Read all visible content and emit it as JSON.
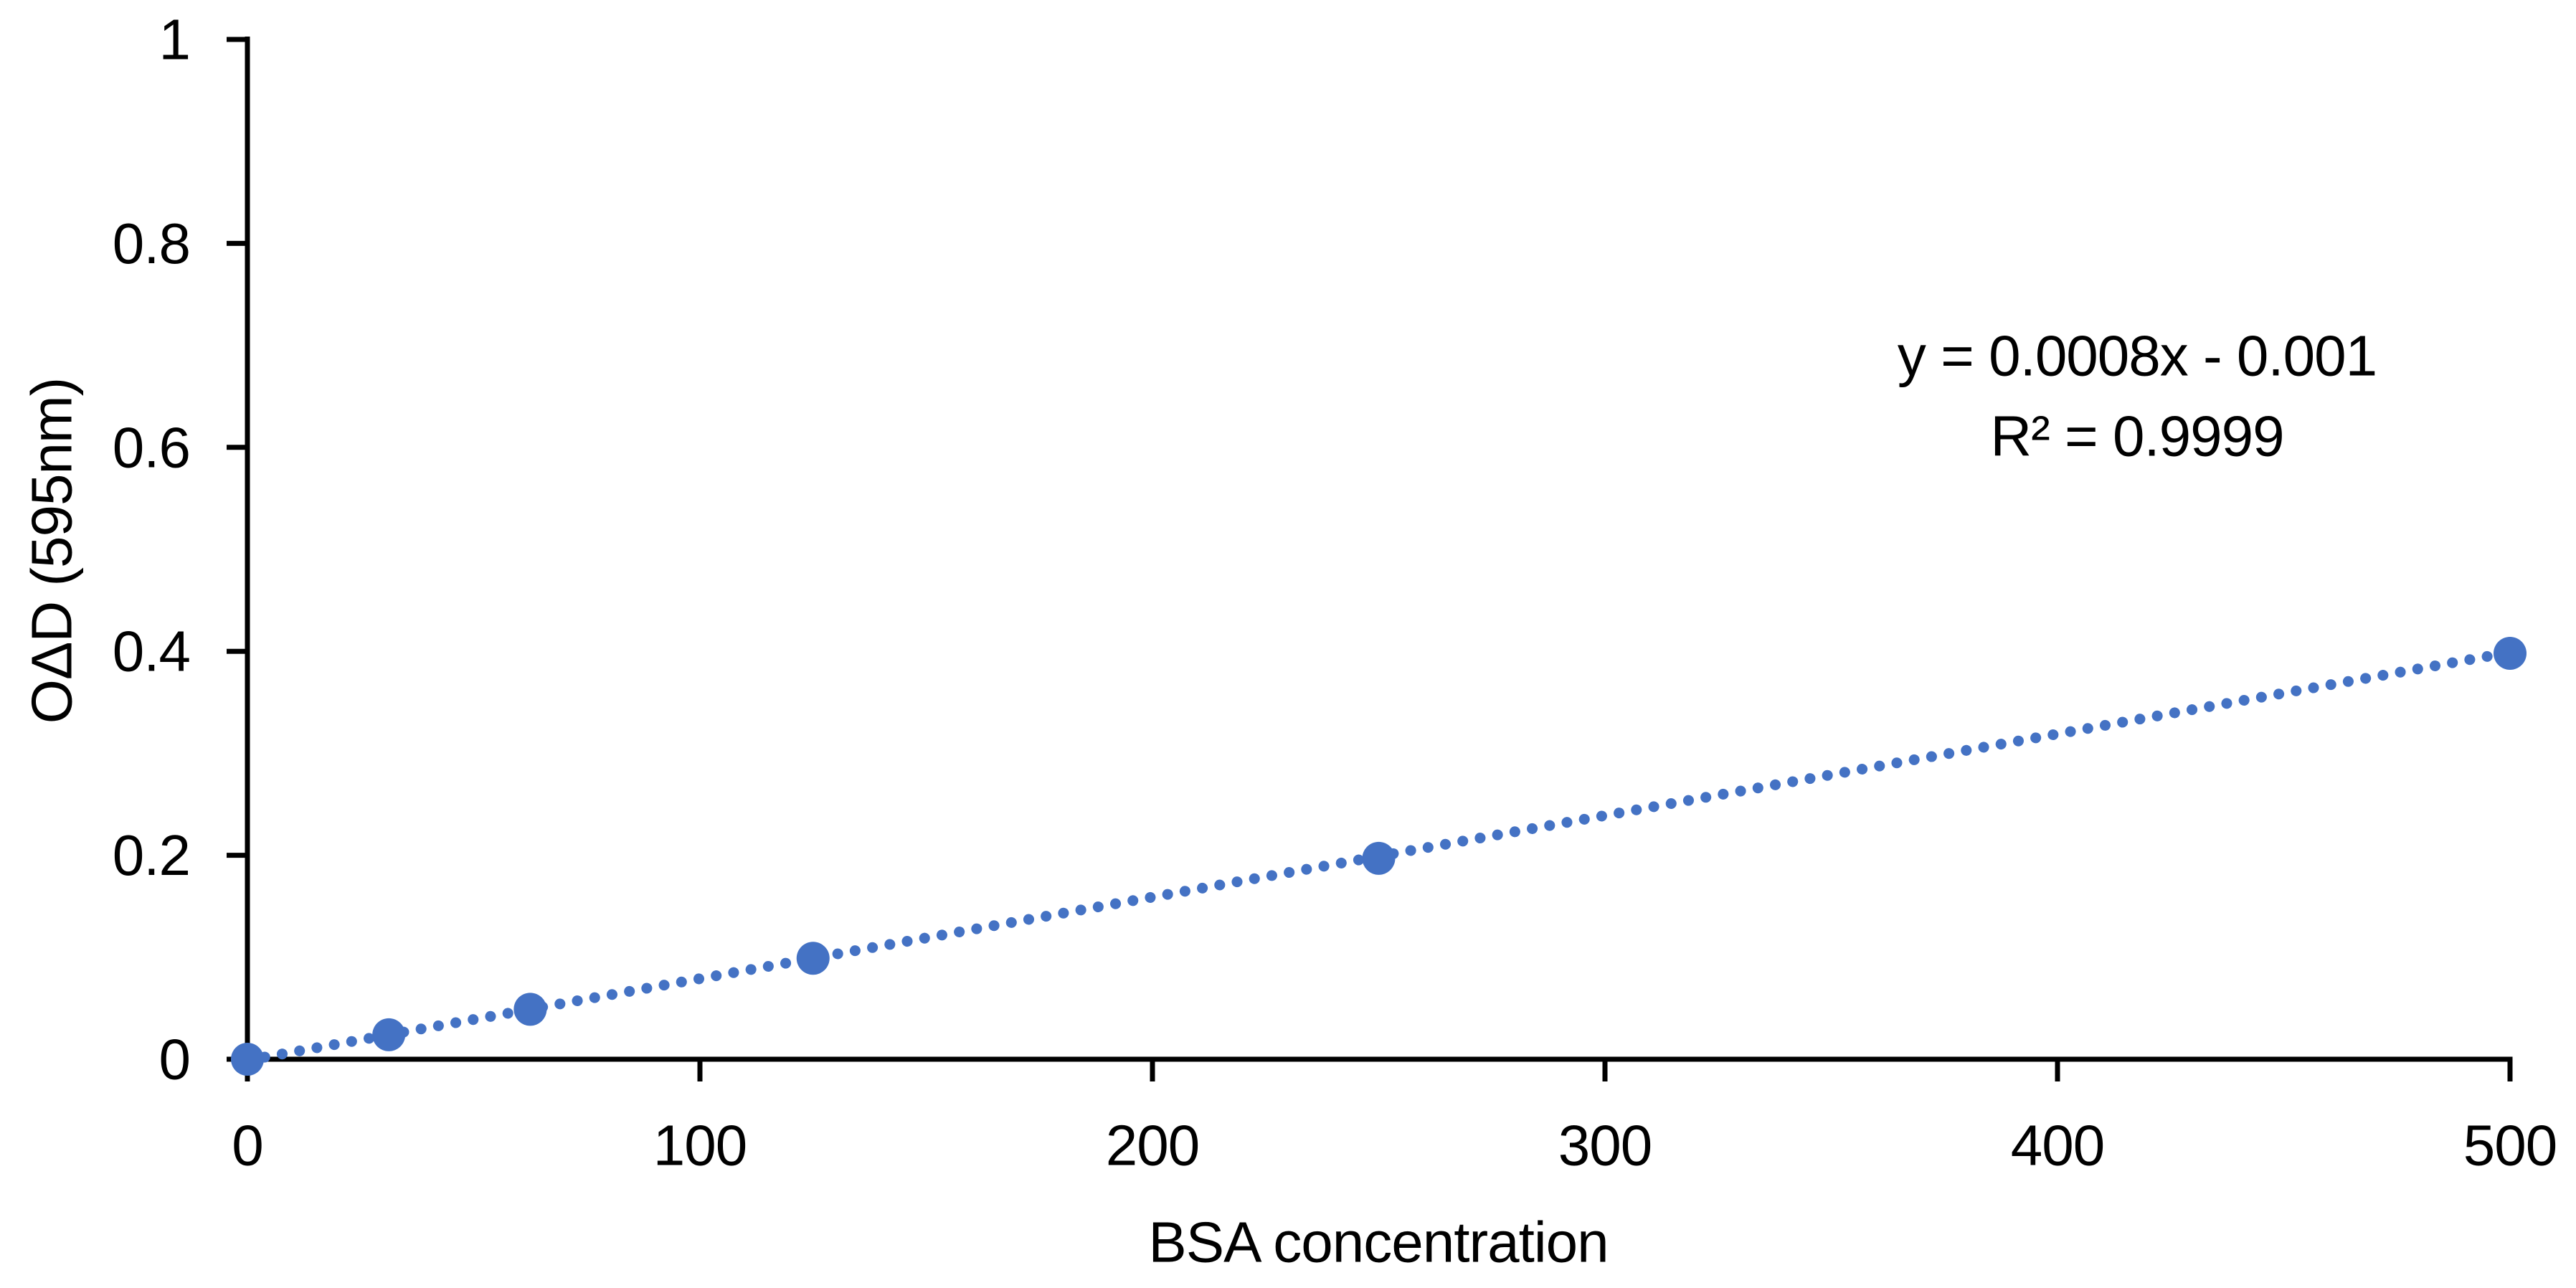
{
  "chart_data": {
    "type": "scatter",
    "title": "",
    "xlabel": "BSA concentration",
    "ylabel": "OΔD (595nm)",
    "xlim": [
      0,
      500
    ],
    "ylim": [
      0,
      1
    ],
    "x_ticks": [
      0,
      100,
      200,
      300,
      400,
      500
    ],
    "x_tick_labels": [
      "0",
      "100",
      "200",
      "300",
      "400",
      "500"
    ],
    "y_ticks": [
      0,
      0.2,
      0.4,
      0.6,
      0.8,
      1
    ],
    "y_tick_labels": [
      "0",
      "0.2",
      "0.4",
      "0.6",
      "0.8",
      "1"
    ],
    "grid": false,
    "legend": false,
    "series": [
      {
        "marker": "circle",
        "color": "#4472C4",
        "points": [
          {
            "x": 0,
            "y": 0
          },
          {
            "x": 31.25,
            "y": 0.024
          },
          {
            "x": 62.5,
            "y": 0.049
          },
          {
            "x": 125,
            "y": 0.099
          },
          {
            "x": 250,
            "y": 0.197
          },
          {
            "x": 500,
            "y": 0.398
          }
        ]
      }
    ],
    "trendline": {
      "type": "linear",
      "equation": "y = 0.0008x - 0.001",
      "r_squared_label": "R² = 0.9999",
      "slope": 0.0008,
      "intercept": -0.001,
      "x_range": [
        0,
        500
      ],
      "style": "dotted",
      "color": "#4472C4"
    },
    "colors": {
      "axis": "#000000",
      "text": "#000000",
      "background": "#FFFFFF"
    }
  }
}
